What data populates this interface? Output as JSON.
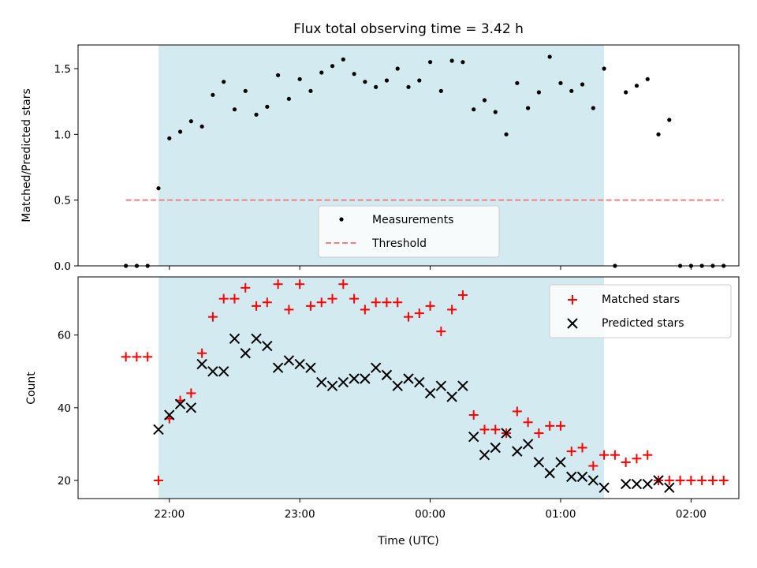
{
  "chart_data": {
    "type": "scatter",
    "title": "Flux total observing time = 3.42 h",
    "xlabel": "Time (UTC)",
    "x_ticks": [
      "22:00",
      "23:00",
      "00:00",
      "01:00",
      "02:00"
    ],
    "observing_window": {
      "start": "21:55",
      "end": "01:20",
      "color": "#d4eaf1"
    },
    "panels": [
      {
        "ylabel": "Matched/Predicted stars",
        "ylim": [
          0,
          1.68
        ],
        "y_ticks": [
          "0.0",
          "0.5",
          "1.0",
          "1.5"
        ],
        "legend_position": "lower-center",
        "series": [
          {
            "name": "Measurements",
            "marker": "dot",
            "color": "#000000",
            "x": [
              "21:40",
              "21:45",
              "21:50",
              "21:55",
              "22:00",
              "22:05",
              "22:10",
              "22:15",
              "22:20",
              "22:25",
              "22:30",
              "22:35",
              "22:40",
              "22:45",
              "22:50",
              "22:55",
              "23:00",
              "23:05",
              "23:10",
              "23:15",
              "23:20",
              "23:25",
              "23:30",
              "23:35",
              "23:40",
              "23:45",
              "23:50",
              "23:55",
              "00:00",
              "00:05",
              "00:10",
              "00:15",
              "00:20",
              "00:25",
              "00:30",
              "00:35",
              "00:40",
              "00:45",
              "00:50",
              "00:55",
              "01:00",
              "01:05",
              "01:10",
              "01:15",
              "01:20",
              "01:25",
              "01:30",
              "01:35",
              "01:40",
              "01:45",
              "01:50",
              "01:55",
              "02:00",
              "02:05",
              "02:10",
              "02:15"
            ],
            "y": [
              0,
              0,
              0,
              0.59,
              0.97,
              1.02,
              1.1,
              1.06,
              1.3,
              1.4,
              1.19,
              1.33,
              1.15,
              1.21,
              1.45,
              1.27,
              1.42,
              1.33,
              1.47,
              1.52,
              1.57,
              1.46,
              1.4,
              1.36,
              1.41,
              1.5,
              1.36,
              1.41,
              1.55,
              1.33,
              1.56,
              1.55,
              1.19,
              1.26,
              1.17,
              1.0,
              1.39,
              1.2,
              1.32,
              1.59,
              1.39,
              1.33,
              1.38,
              1.2,
              1.5,
              0,
              1.32,
              1.37,
              1.42,
              1.0,
              1.11,
              0,
              0,
              0,
              0,
              0
            ]
          },
          {
            "name": "Threshold",
            "marker": "dashed-line",
            "color": "#f08080",
            "x": [
              "21:40",
              "02:15"
            ],
            "y": [
              0.5,
              0.5
            ]
          }
        ]
      },
      {
        "ylabel": "Count",
        "ylim": [
          15,
          76
        ],
        "y_ticks": [
          "20",
          "40",
          "60"
        ],
        "legend_position": "top-right",
        "series": [
          {
            "name": "Matched stars",
            "marker": "plus",
            "color": "#ff0000",
            "x": [
              "21:40",
              "21:45",
              "21:50",
              "21:55",
              "22:00",
              "22:05",
              "22:10",
              "22:15",
              "22:20",
              "22:25",
              "22:30",
              "22:35",
              "22:40",
              "22:45",
              "22:50",
              "22:55",
              "23:00",
              "23:05",
              "23:10",
              "23:15",
              "23:20",
              "23:25",
              "23:30",
              "23:35",
              "23:40",
              "23:45",
              "23:50",
              "23:55",
              "00:00",
              "00:05",
              "00:10",
              "00:15",
              "00:20",
              "00:25",
              "00:30",
              "00:35",
              "00:40",
              "00:45",
              "00:50",
              "00:55",
              "01:00",
              "01:05",
              "01:10",
              "01:15",
              "01:20",
              "01:25",
              "01:30",
              "01:35",
              "01:40",
              "01:45",
              "01:50",
              "01:55",
              "02:00",
              "02:05",
              "02:10",
              "02:15"
            ],
            "y": [
              54,
              54,
              54,
              20,
              37,
              42,
              44,
              55,
              65,
              70,
              70,
              73,
              68,
              69,
              74,
              67,
              74,
              68,
              69,
              70,
              74,
              70,
              67,
              69,
              69,
              69,
              65,
              66,
              68,
              61,
              67,
              71,
              38,
              34,
              34,
              33,
              39,
              36,
              33,
              35,
              35,
              28,
              29,
              24,
              27,
              27,
              25,
              26,
              27,
              20,
              20,
              20,
              20,
              20,
              20,
              20
            ]
          },
          {
            "name": "Predicted stars",
            "marker": "x",
            "color": "#000000",
            "x": [
              "21:55",
              "22:00",
              "22:05",
              "22:10",
              "22:15",
              "22:20",
              "22:25",
              "22:30",
              "22:35",
              "22:40",
              "22:45",
              "22:50",
              "22:55",
              "23:00",
              "23:05",
              "23:10",
              "23:15",
              "23:20",
              "23:25",
              "23:30",
              "23:35",
              "23:40",
              "23:45",
              "23:50",
              "23:55",
              "00:00",
              "00:05",
              "00:10",
              "00:15",
              "00:20",
              "00:25",
              "00:30",
              "00:35",
              "00:40",
              "00:45",
              "00:50",
              "00:55",
              "01:00",
              "01:05",
              "01:10",
              "01:15",
              "01:20",
              "01:30",
              "01:35",
              "01:40",
              "01:45",
              "01:50"
            ],
            "y": [
              34,
              38,
              41,
              40,
              52,
              50,
              50,
              59,
              55,
              59,
              57,
              51,
              53,
              52,
              51,
              47,
              46,
              47,
              48,
              48,
              51,
              49,
              46,
              48,
              47,
              44,
              46,
              43,
              46,
              32,
              27,
              29,
              33,
              28,
              30,
              25,
              22,
              25,
              21,
              21,
              20,
              18,
              19,
              19,
              19,
              20,
              18
            ]
          }
        ]
      }
    ]
  }
}
